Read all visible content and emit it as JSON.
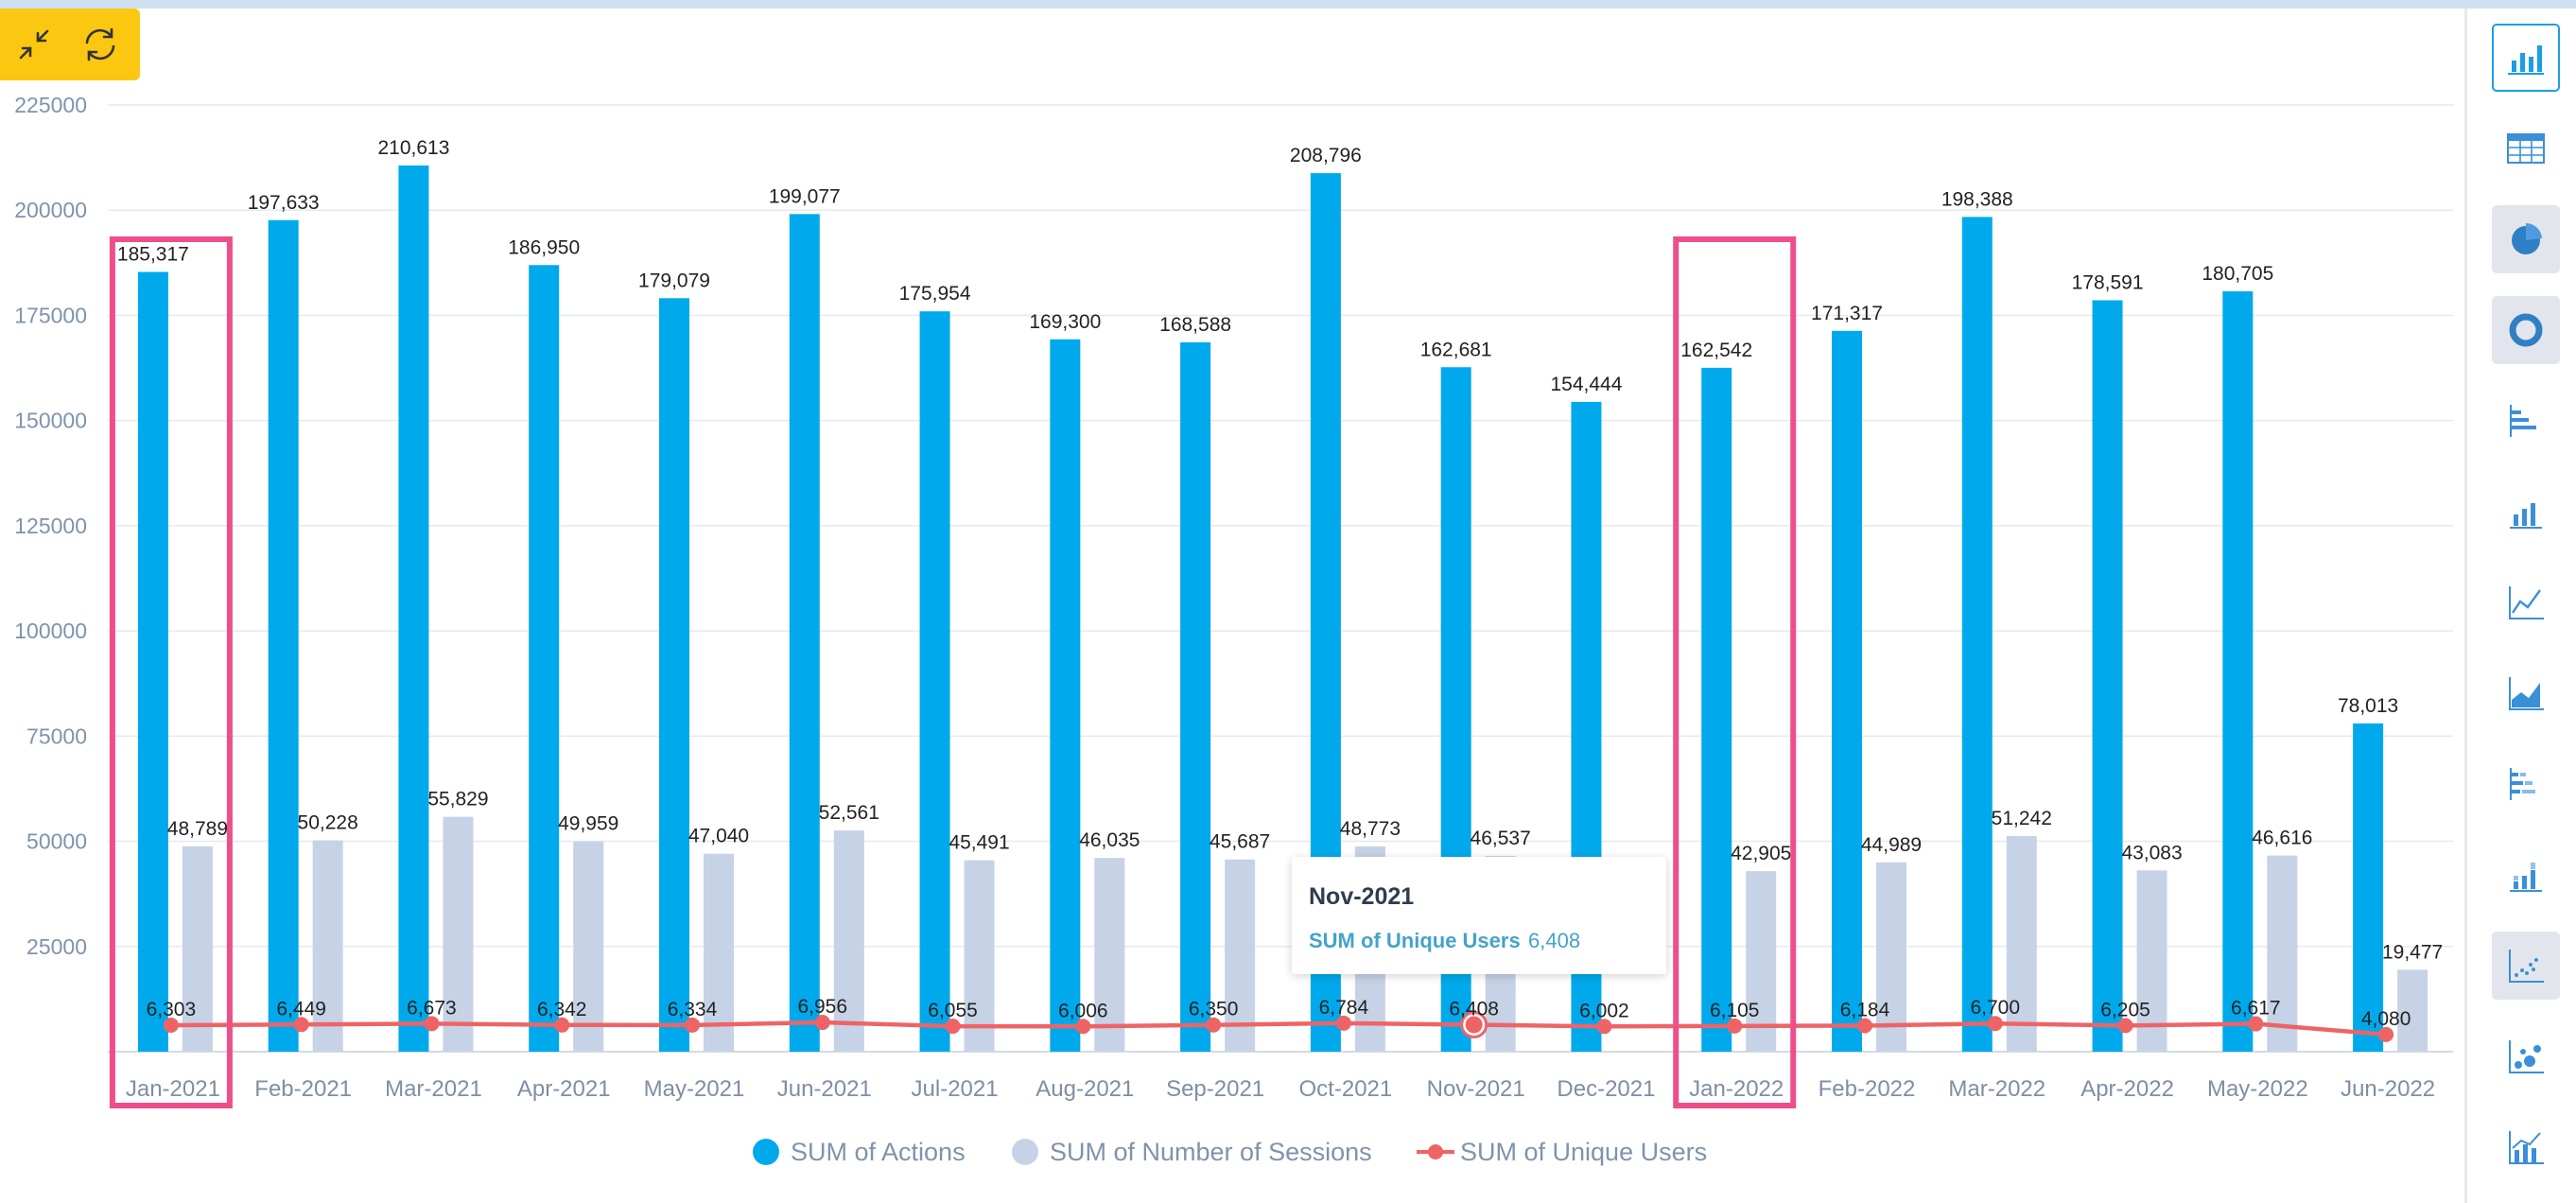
{
  "chart_data": {
    "type": "bar",
    "categories": [
      "Jan-2021",
      "Feb-2021",
      "Mar-2021",
      "Apr-2021",
      "May-2021",
      "Jun-2021",
      "Jul-2021",
      "Aug-2021",
      "Sep-2021",
      "Oct-2021",
      "Nov-2021",
      "Dec-2021",
      "Jan-2022",
      "Feb-2022",
      "Mar-2022",
      "Apr-2022",
      "May-2022",
      "Jun-2022"
    ],
    "series": [
      {
        "name": "SUM of Actions",
        "type": "bar",
        "color": "#00a9ec",
        "values": [
          185317,
          197633,
          210613,
          186950,
          179079,
          199077,
          175954,
          169300,
          168588,
          208796,
          162681,
          154444,
          162542,
          171317,
          198388,
          178591,
          180705,
          78013
        ]
      },
      {
        "name": "SUM of Number of Sessions",
        "type": "bar",
        "color": "#c6d2e6",
        "values": [
          48789,
          50228,
          55829,
          49959,
          47040,
          52561,
          45491,
          46035,
          45687,
          48773,
          46537,
          null,
          42905,
          44989,
          51242,
          43083,
          46616,
          19477
        ]
      },
      {
        "name": "SUM of Unique Users",
        "type": "line",
        "color": "#ee6466",
        "values": [
          6303,
          6449,
          6673,
          6342,
          6334,
          6956,
          6055,
          6006,
          6350,
          6784,
          6408,
          6002,
          6105,
          6184,
          6700,
          6205,
          6617,
          4080
        ]
      }
    ],
    "title": "",
    "xlabel": "",
    "ylabel": "",
    "ylim": [
      0,
      225000
    ],
    "yticks": [
      25000,
      50000,
      75000,
      100000,
      125000,
      150000,
      175000,
      200000,
      225000
    ],
    "grid": true,
    "legend_position": "bottom",
    "highlighted_categories": [
      "Jan-2021",
      "Jan-2022"
    ],
    "highlight_color": "#ee4f8a"
  },
  "tooltip": {
    "title": "Nov-2021",
    "label": "SUM of Unique Users",
    "value": "6,408"
  },
  "toolbar": {
    "buttons": [
      "collapse-icon",
      "refresh-icon"
    ],
    "accent": "#fbc710"
  },
  "sidebar": {
    "buttons": [
      "column-chart",
      "table",
      "pie-chart",
      "donut-chart",
      "bar-chart",
      "column-chart",
      "line-chart",
      "area-chart",
      "stacked-bar-chart",
      "stacked-column-chart",
      "scatter-chart",
      "bubble-chart",
      "combo-chart"
    ],
    "active": "column-chart"
  }
}
